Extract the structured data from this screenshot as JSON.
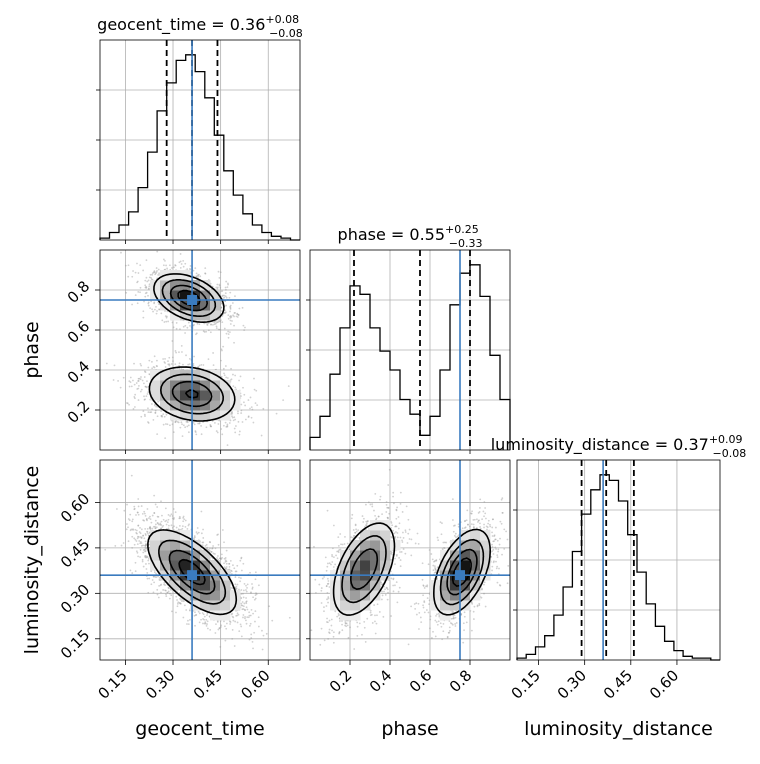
{
  "chart_data": {
    "type": "corner",
    "parameters": [
      "geocent_time",
      "phase",
      "luminosity_distance"
    ],
    "truth": {
      "geocent_time": 0.36,
      "phase": 0.75,
      "luminosity_distance": 0.36
    },
    "grid": true,
    "axes": {
      "geocent_time": {
        "range": [
          0.07,
          0.7
        ],
        "ticks": [
          0.15,
          0.3,
          0.45,
          0.6
        ],
        "tick_labels": [
          "0.15",
          "0.30",
          "0.45",
          "0.60"
        ],
        "xlabel": "geocent_time"
      },
      "phase": {
        "range": [
          0.0,
          1.0
        ],
        "ticks": [
          0.2,
          0.4,
          0.6,
          0.8
        ],
        "tick_labels": [
          "0.2",
          "0.4",
          "0.6",
          "0.8"
        ],
        "xlabel": "phase",
        "ylabel": "phase"
      },
      "luminosity_distance": {
        "range": [
          0.08,
          0.74
        ],
        "ticks": [
          0.15,
          0.3,
          0.45,
          0.6
        ],
        "tick_labels": [
          "0.15",
          "0.30",
          "0.45",
          "0.60"
        ],
        "xlabel": "luminosity_distance",
        "ylabel": "luminosity_distance"
      }
    },
    "titles": {
      "geocent_time": {
        "name": "geocent_time",
        "value": "0.36",
        "plus": "+0.08",
        "minus": "−0.08"
      },
      "phase": {
        "name": "phase",
        "value": "0.55",
        "plus": "+0.25",
        "minus": "−0.33"
      },
      "luminosity_distance": {
        "name": "luminosity_distance",
        "value": "0.37",
        "plus": "+0.09",
        "minus": "−0.08"
      }
    },
    "histograms": {
      "geocent_time": {
        "bin_edges": [
          0.07,
          0.1,
          0.13,
          0.16,
          0.19,
          0.22,
          0.25,
          0.28,
          0.31,
          0.34,
          0.37,
          0.4,
          0.43,
          0.46,
          0.49,
          0.52,
          0.55,
          0.58,
          0.61,
          0.64,
          0.67,
          0.7
        ],
        "counts": [
          1,
          4,
          8,
          15,
          28,
          47,
          69,
          84,
          96,
          99,
          90,
          76,
          56,
          37,
          24,
          14,
          8,
          4,
          2,
          1,
          0
        ],
        "quantiles": [
          0.28,
          0.36,
          0.44
        ]
      },
      "phase": {
        "bin_edges": [
          0.0,
          0.05,
          0.1,
          0.15,
          0.2,
          0.25,
          0.3,
          0.35,
          0.4,
          0.45,
          0.5,
          0.55,
          0.6,
          0.65,
          0.7,
          0.75,
          0.8,
          0.85,
          0.9,
          0.95,
          1.0
        ],
        "counts": [
          6,
          16,
          36,
          58,
          78,
          74,
          58,
          47,
          38,
          24,
          17,
          7,
          16,
          38,
          69,
          84,
          88,
          73,
          45,
          24
        ],
        "quantiles": [
          0.22,
          0.55,
          0.8
        ]
      },
      "luminosity_distance": {
        "bin_edges": [
          0.08,
          0.11,
          0.14,
          0.17,
          0.2,
          0.23,
          0.26,
          0.29,
          0.32,
          0.35,
          0.38,
          0.41,
          0.44,
          0.47,
          0.5,
          0.53,
          0.56,
          0.59,
          0.62,
          0.65,
          0.68,
          0.71,
          0.74
        ],
        "counts": [
          1,
          3,
          7,
          13,
          24,
          39,
          58,
          78,
          91,
          99,
          96,
          85,
          67,
          47,
          30,
          18,
          10,
          5,
          2,
          1,
          1,
          0
        ],
        "quantiles": [
          0.29,
          0.37,
          0.46
        ]
      }
    },
    "pair_density": {
      "phase_vs_geocent_time": {
        "modes": [
          {
            "x": 0.35,
            "y": 0.76,
            "sx": 0.055,
            "sy": 0.06,
            "rho": -0.4,
            "w": 1.0
          },
          {
            "x": 0.36,
            "y": 0.28,
            "sx": 0.07,
            "sy": 0.07,
            "rho": -0.2,
            "w": 0.85
          }
        ]
      },
      "luminosity_distance_vs_geocent_time": {
        "modes": [
          {
            "x": 0.36,
            "y": 0.37,
            "sx": 0.07,
            "sy": 0.07,
            "rho": -0.65,
            "w": 1.0
          }
        ]
      },
      "luminosity_distance_vs_phase": {
        "modes": [
          {
            "x": 0.27,
            "y": 0.38,
            "sx": 0.08,
            "sy": 0.08,
            "rho": 0.5,
            "w": 0.8
          },
          {
            "x": 0.76,
            "y": 0.37,
            "sx": 0.07,
            "sy": 0.07,
            "rho": 0.5,
            "w": 1.0
          }
        ]
      }
    }
  }
}
